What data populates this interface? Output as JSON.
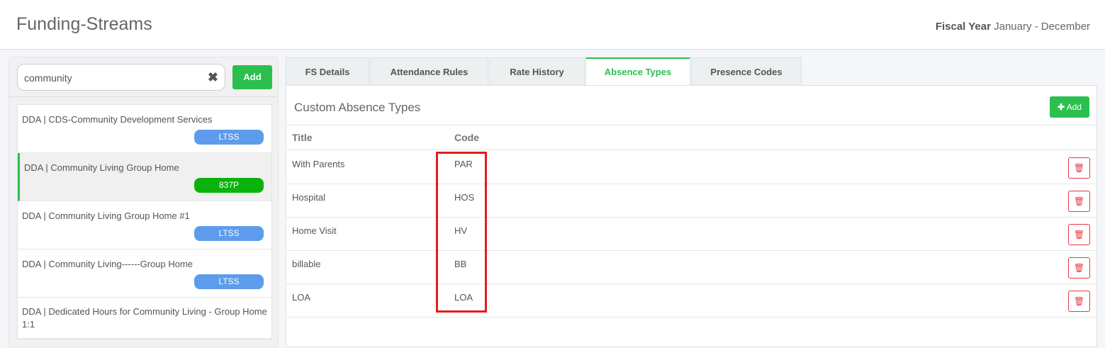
{
  "header": {
    "title": "Funding-Streams",
    "fiscal_label": "Fiscal Year",
    "fiscal_value": "January - December"
  },
  "sidebar": {
    "search_value": "community",
    "add_label": "Add",
    "items": [
      {
        "label": "DDA | CDS-Community Development Services",
        "badge": "LTSS",
        "badge_color": "#5d9cec"
      },
      {
        "label": "DDA | Community Living Group Home",
        "badge": "837P",
        "badge_color": "#0ab30a",
        "selected": true
      },
      {
        "label": "DDA | Community Living Group Home #1",
        "badge": "LTSS",
        "badge_color": "#5d9cec"
      },
      {
        "label": "DDA | Community Living------Group Home",
        "badge": "LTSS",
        "badge_color": "#5d9cec"
      },
      {
        "label": "DDA | Dedicated Hours for Community Living - Group Home 1:1"
      }
    ]
  },
  "tabs": [
    {
      "label": "FS Details"
    },
    {
      "label": "Attendance Rules"
    },
    {
      "label": "Rate History"
    },
    {
      "label": "Absence Types",
      "active": true
    },
    {
      "label": "Presence Codes"
    }
  ],
  "main": {
    "section_title": "Custom Absence Types",
    "add_label": "Add",
    "columns": [
      "Title",
      "Code"
    ],
    "rows": [
      {
        "title": "With Parents",
        "code": "PAR"
      },
      {
        "title": "Hospital",
        "code": "HOS"
      },
      {
        "title": "Home Visit",
        "code": "HV"
      },
      {
        "title": "billable",
        "code": "BB"
      },
      {
        "title": "LOA",
        "code": "LOA"
      }
    ]
  },
  "colors": {
    "accent": "#2bbf4e",
    "danger": "#e53945",
    "highlight": "#e31b1b"
  }
}
